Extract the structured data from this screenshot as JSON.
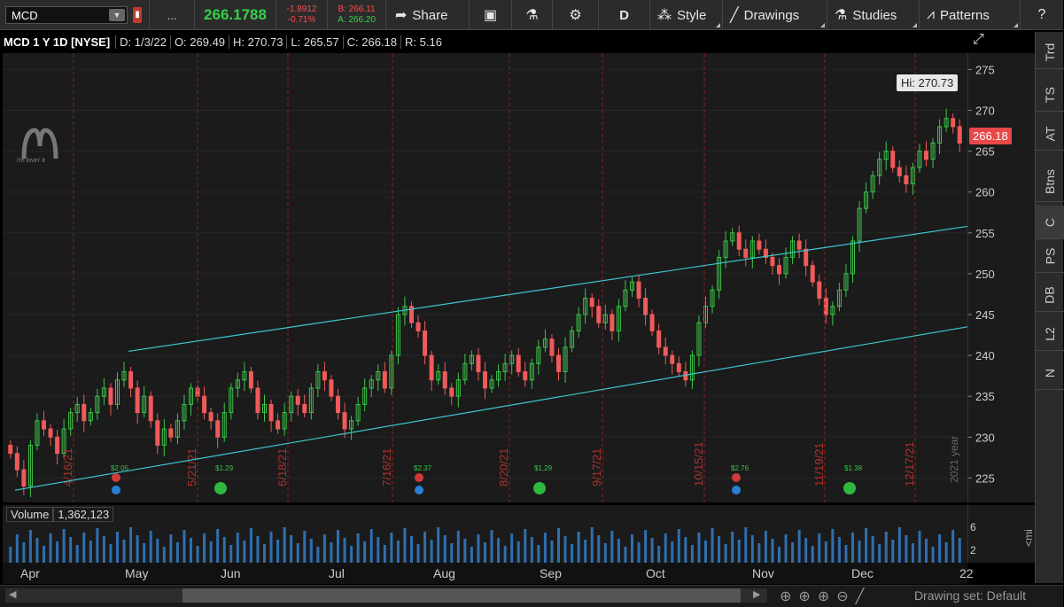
{
  "toolbar": {
    "symbol": "MCD",
    "alert_icon": "alert-flag-icon",
    "more_label": "...",
    "last_price": "266.1788",
    "net_change": "-1.8912",
    "pct_change": "-0.71%",
    "bid": "B: 266.11",
    "ask": "A: 266.20",
    "share_label": "Share",
    "aggregation": "D",
    "style_label": "Style",
    "drawings_label": "Drawings",
    "studies_label": "Studies",
    "patterns_label": "Patterns"
  },
  "infobar": {
    "title": "MCD 1 Y 1D [NYSE]",
    "date": "D: 1/3/22",
    "open": "O: 269.49",
    "high": "H: 270.73",
    "low": "L: 265.57",
    "close": "C: 266.18",
    "range": "R: 5.16"
  },
  "price_axis": {
    "ticks": [
      "275",
      "270",
      "265",
      "260",
      "255",
      "250",
      "245",
      "240",
      "235",
      "230",
      "225"
    ],
    "hi_label": "Hi: 270.73",
    "last_label": "266.18"
  },
  "chart_data": {
    "type": "candlestick",
    "symbol": "MCD",
    "ylim": [
      222,
      277
    ],
    "events_dividend": [
      "$2.05",
      "$1.29",
      "$2.37",
      "$1.29",
      "$2.76",
      "$1.38"
    ],
    "date_markers": [
      "4/16/21",
      "5/21/21",
      "6/18/21",
      "7/16/21",
      "8/20/21",
      "9/17/21",
      "10/15/21",
      "11/19/21",
      "12/17/21"
    ],
    "year_label": "2021 year",
    "closes": [
      228,
      226,
      224,
      229,
      232,
      231,
      230,
      228,
      231,
      233,
      234,
      232,
      233,
      235,
      236,
      234,
      237,
      238,
      236,
      233,
      235,
      232,
      229,
      231,
      230,
      232,
      234,
      236,
      235,
      233,
      232,
      230,
      233,
      236,
      237,
      238,
      236,
      233,
      234,
      232,
      231,
      233,
      235,
      234,
      233,
      236,
      238,
      237,
      235,
      233,
      231,
      232,
      234,
      236,
      237,
      238,
      236,
      240,
      245,
      246,
      244,
      243,
      240,
      237,
      238,
      236,
      235,
      237,
      239,
      240,
      238,
      236,
      237,
      238,
      239,
      240,
      238,
      237,
      239,
      241,
      242,
      240,
      238,
      241,
      243,
      245,
      247,
      246,
      244,
      245,
      243,
      246,
      248,
      249,
      247,
      245,
      243,
      241,
      240,
      239,
      238,
      237,
      240,
      244,
      246,
      248,
      252,
      254,
      255,
      253,
      252,
      254,
      253,
      252,
      251,
      250,
      252,
      254,
      253,
      251,
      249,
      247,
      245,
      246,
      248,
      250,
      254,
      258,
      260,
      262,
      264,
      265,
      263,
      262,
      261,
      263,
      265,
      264,
      266,
      268,
      269,
      268,
      266
    ],
    "volume_axis": [
      "6",
      "2"
    ],
    "volume_value": "1,362,123"
  },
  "volume": {
    "label": "Volume",
    "value": "1,362,123"
  },
  "date_axis": {
    "labels": [
      "Apr",
      "May",
      "Jun",
      "Jul",
      "Aug",
      "Sep",
      "Oct",
      "Nov",
      "Dec",
      "22"
    ]
  },
  "side_tabs": [
    "Trd",
    "TS",
    "AT",
    "Btns",
    "C",
    "PS",
    "DB",
    "L2",
    "N"
  ],
  "bottom": {
    "drawing_set": "Drawing set: Default"
  },
  "logo_text": "i'm lovin' it"
}
